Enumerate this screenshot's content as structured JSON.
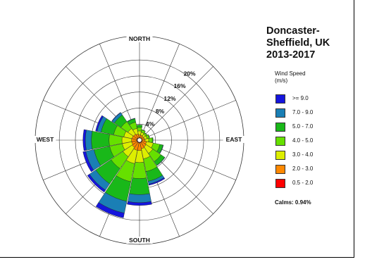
{
  "chart_data": {
    "type": "windrose",
    "title_lines": [
      "Doncaster-",
      "Sheffield, UK",
      "2013-2017"
    ],
    "legend_title_lines": [
      "Wind Speed",
      "(m/s)"
    ],
    "directions": [
      "NORTH",
      "EAST",
      "SOUTH",
      "WEST"
    ],
    "ring_labels": [
      "4%",
      "8%",
      "12%",
      "16%",
      "20%"
    ],
    "ring_values": [
      4,
      8,
      12,
      16,
      20
    ],
    "rmax": 26,
    "calms_label": "Calms: 0.94%",
    "bins": [
      {
        "label": "0.5 - 2.0",
        "color": "#ff0000"
      },
      {
        "label": "2.0 - 3.0",
        "color": "#ff8800"
      },
      {
        "label": "3.0 - 4.0",
        "color": "#ddee00"
      },
      {
        "label": "4.0 - 5.0",
        "color": "#66e000"
      },
      {
        "label": "5.0 - 7.0",
        "color": "#19b819"
      },
      {
        "label": "7.0 - 9.0",
        "color": "#1a7fb5"
      },
      {
        "label": ">= 9.0",
        "color": "#1515dd"
      }
    ],
    "sectors": [
      {
        "dir": 0,
        "cum": [
          0.6,
          1.3,
          2.3,
          3.2,
          3.8,
          3.8,
          3.8
        ]
      },
      {
        "dir": 22.5,
        "cum": [
          0.6,
          1.3,
          2.0,
          2.6,
          2.7,
          2.7,
          2.7
        ]
      },
      {
        "dir": 45,
        "cum": [
          0.6,
          1.2,
          1.8,
          2.2,
          2.3,
          2.3,
          2.3
        ]
      },
      {
        "dir": 67.5,
        "cum": [
          0.6,
          1.2,
          1.9,
          2.5,
          2.6,
          2.6,
          2.6
        ]
      },
      {
        "dir": 90,
        "cum": [
          0.6,
          1.4,
          2.3,
          3.2,
          3.4,
          3.4,
          3.4
        ]
      },
      {
        "dir": 112.5,
        "cum": [
          0.7,
          1.8,
          3.5,
          5.2,
          6.0,
          6.1,
          6.1
        ]
      },
      {
        "dir": 135,
        "cum": [
          0.7,
          2.0,
          4.0,
          6.5,
          7.6,
          7.7,
          7.7
        ]
      },
      {
        "dir": 157.5,
        "cum": [
          0.7,
          2.2,
          4.8,
          8.0,
          10.5,
          11.2,
          11.5
        ]
      },
      {
        "dir": 180,
        "cum": [
          0.7,
          2.6,
          5.6,
          9.6,
          13.6,
          15.6,
          16.3
        ]
      },
      {
        "dir": 202.5,
        "cum": [
          0.7,
          2.6,
          6.0,
          10.6,
          15.6,
          18.6,
          19.8
        ]
      },
      {
        "dir": 225,
        "cum": [
          0.7,
          2.2,
          5.0,
          8.6,
          13.2,
          15.1,
          15.7
        ]
      },
      {
        "dir": 247.5,
        "cum": [
          0.7,
          2.0,
          4.4,
          7.6,
          11.6,
          13.7,
          14.4
        ]
      },
      {
        "dir": 270,
        "cum": [
          0.7,
          2.0,
          4.4,
          7.6,
          12.0,
          13.5,
          14.1
        ]
      },
      {
        "dir": 292.5,
        "cum": [
          0.7,
          1.9,
          4.0,
          6.6,
          9.8,
          10.8,
          11.2
        ]
      },
      {
        "dir": 315,
        "cum": [
          0.7,
          1.8,
          3.5,
          5.6,
          7.6,
          8.3,
          8.4
        ]
      },
      {
        "dir": 337.5,
        "cum": [
          0.6,
          1.6,
          3.0,
          4.6,
          5.5,
          5.6,
          5.6
        ]
      }
    ]
  }
}
